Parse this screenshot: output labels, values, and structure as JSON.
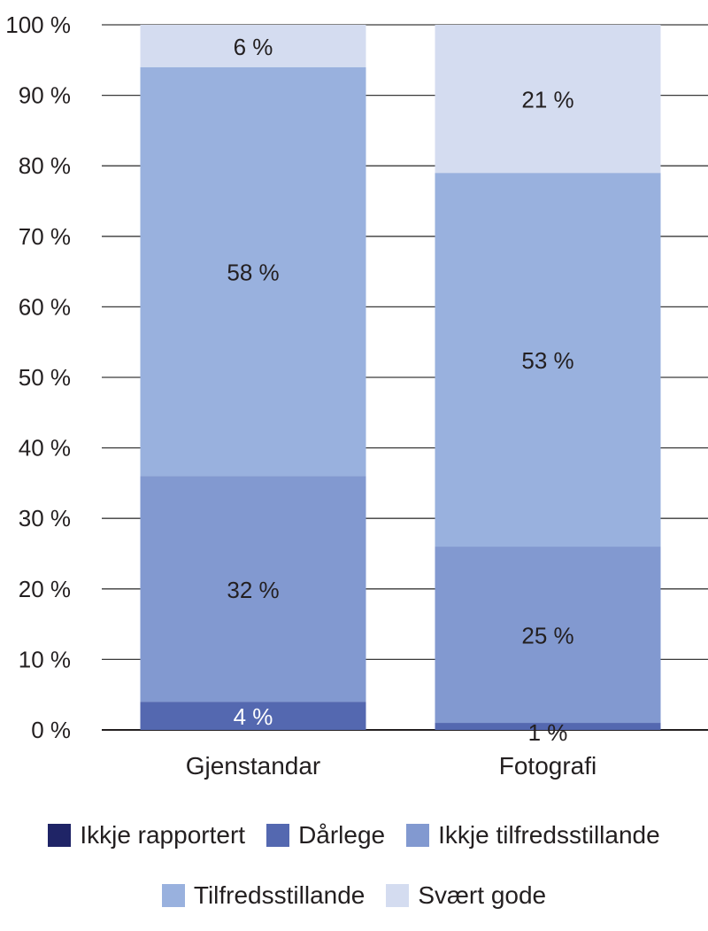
{
  "chart_data": {
    "type": "bar",
    "stacked": true,
    "categories": [
      "Gjenstandar",
      "Fotografi"
    ],
    "series": [
      {
        "name": "Ikkje rapportert",
        "color": "#1f2466",
        "values": [
          0,
          0
        ],
        "labels": [
          "",
          ""
        ]
      },
      {
        "name": "Dårlege",
        "color": "#5468b0",
        "values": [
          4,
          1
        ],
        "labels": [
          "4 %",
          "1 %"
        ]
      },
      {
        "name": "Ikkje tilfredsstillande",
        "color": "#8299d0",
        "values": [
          32,
          25
        ],
        "labels": [
          "32 %",
          "25 %"
        ]
      },
      {
        "name": "Tilfredsstillande",
        "color": "#99b1de",
        "values": [
          58,
          53
        ],
        "labels": [
          "58 %",
          "53 %"
        ]
      },
      {
        "name": "Svært gode",
        "color": "#d4dcf0",
        "values": [
          6,
          21
        ],
        "labels": [
          "6 %",
          "21 %"
        ]
      }
    ],
    "yticks": [
      "0 %",
      "10 %",
      "20 %",
      "30 %",
      "40 %",
      "50 %",
      "60 %",
      "70 %",
      "80 %",
      "90 %",
      "100 %"
    ],
    "ylim": [
      0,
      100
    ],
    "grid": true,
    "legend_position": "bottom"
  }
}
